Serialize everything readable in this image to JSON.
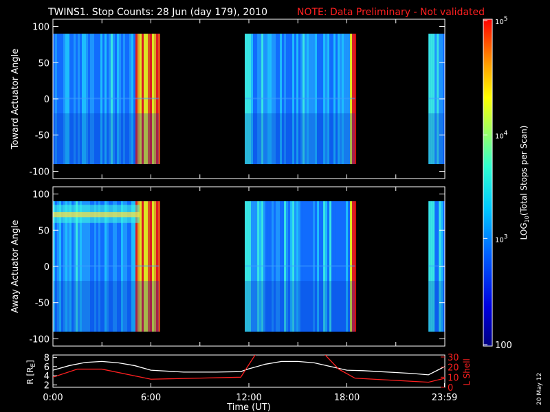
{
  "header": {
    "title": "TWINS1. Stop Counts: 28 Jun (day 179), 2010",
    "note": "NOTE: Data Preliminary - Not validated"
  },
  "side_date": "20 May 12",
  "colors": {
    "background": "#000000",
    "axes": "#ffffff",
    "note": "#ff2020",
    "lshell": "#ff2020",
    "radius": "#ffffff"
  },
  "chart_data": [
    {
      "type": "heatmap",
      "ylabel": "Toward Actuator Angle",
      "yticks": [
        "100",
        "50",
        "0",
        "-50",
        "-100"
      ],
      "ylim": [
        -110,
        110
      ],
      "data_angle_range": [
        -90,
        90
      ],
      "xlim_hours": [
        0,
        24
      ],
      "colorscale": "rainbow",
      "data_hours": [
        [
          0.0,
          6.5
        ],
        [
          11.75,
          18.5
        ],
        [
          23.0,
          24.0
        ]
      ],
      "dominant_level": "blue (~log10 2.8)",
      "hot_band_hours": [
        5.0,
        6.5
      ]
    },
    {
      "type": "heatmap",
      "ylabel": "Away Actuator Angle",
      "yticks": [
        "100",
        "50",
        "0",
        "-50",
        "-100"
      ],
      "ylim": [
        -110,
        110
      ],
      "data_angle_range": [
        -90,
        90
      ],
      "xlim_hours": [
        0,
        24
      ],
      "colorscale": "rainbow",
      "data_hours": [
        [
          0.0,
          6.5
        ],
        [
          11.75,
          18.5
        ],
        [
          23.0,
          24.0
        ]
      ],
      "dominant_level": "blue (~log10 2.8)",
      "hot_band_hours": [
        5.0,
        6.5
      ],
      "hot_band_angles": [
        60,
        85
      ]
    },
    {
      "type": "line",
      "ylabel_left": "R [R",
      "ylabel_left_sub": "E",
      "ylabel_left_end": "]",
      "ylabel_right": "L Shell",
      "xlabel": "Time (UT)",
      "xticks": [
        "0:00",
        "6:00",
        "12:00",
        "18:00",
        "23:59"
      ],
      "xtick_hours": [
        0,
        6,
        12,
        18,
        23.98
      ],
      "yticks_left": [
        "8",
        "6",
        "4",
        "2"
      ],
      "ylim_left": [
        1.5,
        8.5
      ],
      "yticks_right": [
        "30",
        "20",
        "10",
        "0"
      ],
      "ylim_right": [
        0,
        32
      ],
      "series": [
        {
          "key": "radius",
          "x": [
            0,
            1,
            2,
            3,
            4,
            5,
            6,
            8,
            10,
            11.5,
            12,
            13,
            14,
            15,
            16,
            17,
            18,
            19,
            20,
            21,
            22,
            23,
            24
          ],
          "y": [
            5.2,
            6.2,
            6.9,
            7.1,
            6.8,
            6.2,
            5.2,
            4.8,
            4.8,
            4.9,
            5.5,
            6.5,
            7.1,
            7.1,
            6.8,
            6.0,
            5.2,
            5.1,
            4.9,
            4.7,
            4.5,
            4.2,
            6.0
          ]
        },
        {
          "key": "lshell",
          "x": [
            0,
            1.5,
            3,
            6,
            11.5,
            12.5,
            16.5,
            17.5,
            18.5,
            23,
            24
          ],
          "y": [
            10,
            18,
            18,
            8,
            10,
            35,
            35,
            18,
            9,
            5,
            9
          ]
        }
      ]
    },
    {
      "type": "colorbar",
      "label_main": "LOG",
      "label_sub": "10",
      "label_end": "(Total Stops per Scan)",
      "scale": "log10",
      "range": [
        2,
        5
      ],
      "tick_labels": [
        "10",
        "10",
        "10",
        "100"
      ],
      "tick_exps": [
        "5",
        "4",
        "3",
        ""
      ]
    }
  ]
}
